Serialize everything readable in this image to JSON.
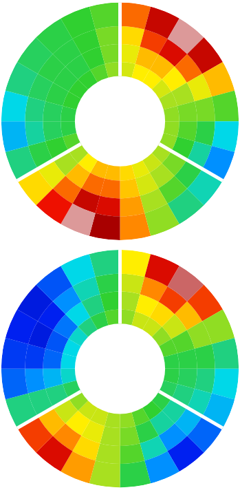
{
  "chart_data": [
    {
      "type": "polar_heatmap",
      "r_edges": [
        0.38,
        0.5,
        0.65,
        0.8,
        1.0
      ],
      "theta_edges": [
        0,
        15,
        30,
        45,
        60,
        75,
        90,
        105,
        120,
        135,
        150,
        165,
        180,
        195,
        210,
        225,
        240,
        255,
        270,
        285,
        300,
        315,
        330,
        345,
        360
      ],
      "cells": [
        [
          0.66,
          0.7,
          0.7,
          0.66,
          0.62,
          0.6,
          0.6,
          0.6,
          0.62,
          0.65,
          0.68,
          0.72,
          0.75,
          0.75,
          0.7,
          0.62,
          0.55,
          0.5,
          0.5,
          0.52,
          0.52,
          0.52,
          0.55,
          0.6
        ],
        [
          0.68,
          0.75,
          0.75,
          0.7,
          0.62,
          0.58,
          0.55,
          0.52,
          0.58,
          0.62,
          0.66,
          0.74,
          0.82,
          0.82,
          0.75,
          0.62,
          0.52,
          0.48,
          0.48,
          0.5,
          0.5,
          0.5,
          0.52,
          0.58
        ],
        [
          0.72,
          0.85,
          0.9,
          0.82,
          0.68,
          0.58,
          0.5,
          0.42,
          0.5,
          0.55,
          0.62,
          0.78,
          0.9,
          0.92,
          0.82,
          0.68,
          0.5,
          0.42,
          0.45,
          0.48,
          0.5,
          0.5,
          0.52,
          0.58
        ],
        [
          0.82,
          0.92,
          0.98,
          0.92,
          0.75,
          0.55,
          0.35,
          0.25,
          0.4,
          0.45,
          0.6,
          0.8,
          0.95,
          0.98,
          0.88,
          0.72,
          0.45,
          0.3,
          0.35,
          0.45,
          0.48,
          0.5,
          0.52,
          0.55
        ]
      ],
      "rlim": [
        0,
        1
      ],
      "zlim": [
        0,
        1
      ],
      "tick_labels": false,
      "grid": false
    },
    {
      "type": "polar_heatmap",
      "r_edges": [
        0.38,
        0.5,
        0.65,
        0.8,
        1.0
      ],
      "theta_edges": [
        0,
        15,
        30,
        45,
        60,
        75,
        90,
        105,
        120,
        135,
        150,
        165,
        180,
        195,
        210,
        225,
        240,
        255,
        270,
        285,
        300,
        315,
        330,
        345,
        360
      ],
      "cells": [
        [
          0.6,
          0.65,
          0.65,
          0.6,
          0.55,
          0.5,
          0.5,
          0.48,
          0.5,
          0.52,
          0.55,
          0.6,
          0.62,
          0.65,
          0.65,
          0.6,
          0.48,
          0.38,
          0.35,
          0.35,
          0.38,
          0.45,
          0.5,
          0.55
        ],
        [
          0.62,
          0.7,
          0.72,
          0.65,
          0.55,
          0.5,
          0.48,
          0.45,
          0.42,
          0.42,
          0.5,
          0.58,
          0.62,
          0.68,
          0.7,
          0.65,
          0.45,
          0.3,
          0.2,
          0.18,
          0.22,
          0.35,
          0.45,
          0.52
        ],
        [
          0.65,
          0.8,
          0.85,
          0.75,
          0.6,
          0.5,
          0.45,
          0.4,
          0.3,
          0.25,
          0.4,
          0.55,
          0.62,
          0.72,
          0.8,
          0.75,
          0.45,
          0.25,
          0.15,
          0.1,
          0.12,
          0.25,
          0.4,
          0.5
        ],
        [
          0.7,
          0.9,
          0.97,
          0.85,
          0.6,
          0.45,
          0.35,
          0.3,
          0.2,
          0.12,
          0.25,
          0.5,
          0.62,
          0.78,
          0.9,
          0.85,
          0.45,
          0.2,
          0.15,
          0.12,
          0.1,
          0.18,
          0.35,
          0.45
        ]
      ],
      "rlim": [
        0,
        1
      ],
      "zlim": [
        0,
        1
      ],
      "tick_labels": false,
      "grid": false
    }
  ]
}
